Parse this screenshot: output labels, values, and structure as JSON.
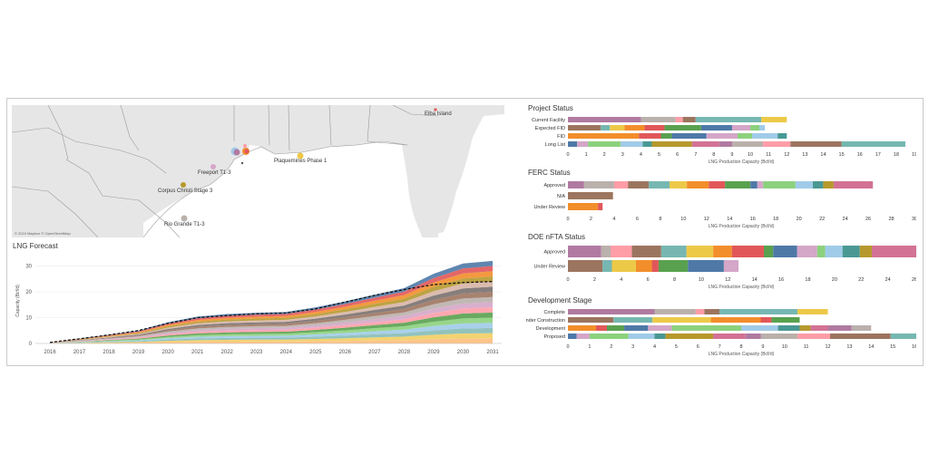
{
  "colors": [
    "#b07aa1",
    "#bab0ac",
    "#ff9da7",
    "#9c755f",
    "#76b7b2",
    "#edc948",
    "#f28e2b",
    "#e15759",
    "#59a14f",
    "#4e79a7",
    "#d4a6c8",
    "#8cd17d",
    "#a0cbe8",
    "#499894",
    "#b6992d",
    "#d37295"
  ],
  "map": {
    "attribution": "© 2024 Mapbox © OpenStreetMap",
    "labels": [
      "Elba Island",
      "Plaquemines Phase 1",
      "Freeport T1-3",
      "Corpus Christi Stage 3",
      "Rio Grande T1-3"
    ]
  },
  "chart_data": [
    {
      "type": "area",
      "title": "LNG Forecast",
      "ylabel": "Capacity (Bcf/d)",
      "x": [
        2016,
        2017,
        2018,
        2019,
        2020,
        2021,
        2022,
        2023,
        2024,
        2025,
        2026,
        2027,
        2028,
        2029,
        2030,
        2031
      ],
      "ylim": [
        0,
        33
      ],
      "yticks": [
        0,
        10,
        20,
        30
      ],
      "total": [
        0.4,
        1.9,
        3.4,
        5.0,
        8.2,
        10.4,
        11.4,
        11.9,
        12.2,
        14.0,
        16.3,
        18.9,
        21.4,
        27.0,
        31.0,
        32.0
      ],
      "forecast_line": [
        0.4,
        1.8,
        3.3,
        5.0,
        7.8,
        10.0,
        10.8,
        11.5,
        11.8,
        13.4,
        16.0,
        18.6,
        20.9,
        22.8,
        23.6,
        24.0
      ]
    },
    {
      "type": "bar",
      "title": "Project Status",
      "categories": [
        "Current Facility",
        "Expected FID",
        "FID",
        "Long List"
      ],
      "segments": [
        [
          4.0,
          1.9,
          0.4,
          0.7,
          3.6,
          1.4
        ],
        [
          1.8,
          0.5,
          0.8,
          1.1,
          1.1,
          2.0,
          1.7,
          1.0,
          0.5,
          0.3
        ],
        [
          3.9,
          1.2,
          0.6,
          1.9,
          1.7,
          0.8,
          1.4,
          0.5
        ],
        [
          0.5,
          0.6,
          1.8,
          1.2,
          0.5,
          2.2,
          1.5,
          0.7,
          1.7,
          1.5,
          2.8,
          3.5
        ]
      ],
      "xticks": [
        0,
        1,
        2,
        3,
        4,
        5,
        6,
        7,
        8,
        9,
        10,
        11,
        12,
        13,
        14,
        15,
        16,
        17,
        18,
        19
      ],
      "xlabel": "LNG Production Capacity (Bcf/d)"
    },
    {
      "type": "bar",
      "title": "FERC Status",
      "categories": [
        "Approved",
        "N/A",
        "Under Review"
      ],
      "segments": [
        [
          1.4,
          2.6,
          1.2,
          1.8,
          1.8,
          1.5,
          1.9,
          1.4,
          2.2,
          0.6,
          0.5,
          2.8,
          1.5,
          0.9,
          0.9,
          3.4
        ],
        [
          3.9
        ],
        [
          2.6,
          0.4
        ]
      ],
      "xticks": [
        0,
        2,
        4,
        6,
        8,
        10,
        12,
        14,
        16,
        18,
        20,
        22,
        24,
        26,
        28,
        30
      ],
      "xlabel": "LNG Production Capacity (Bcf/d)"
    },
    {
      "type": "bar",
      "title": "DOE nFTA Status",
      "categories": [
        "Approved",
        "Under Review"
      ],
      "segments": [
        [
          2.5,
          0.7,
          1.6,
          2.2,
          1.9,
          2.0,
          1.4,
          2.4,
          0.7,
          1.8,
          1.5,
          0.6,
          1.3,
          1.3,
          0.9,
          3.6
        ],
        [
          2.6,
          0.7,
          1.8,
          1.2,
          0.5,
          2.2,
          2.7,
          1.1
        ]
      ],
      "xticks": [
        0,
        2,
        4,
        6,
        8,
        10,
        12,
        14,
        16,
        18,
        20,
        22,
        24,
        26
      ],
      "xlabel": "LNG Production Capacity (Bcf/d)"
    },
    {
      "type": "bar",
      "title": "Development Stage",
      "categories": [
        "Complete",
        "Under Construction",
        "Development",
        "Proposed"
      ],
      "segments": [
        [
          4.0,
          1.9,
          0.4,
          0.7,
          3.6,
          1.4
        ],
        [
          2.1,
          1.8,
          2.7,
          2.3,
          0.5,
          1.3
        ],
        [
          1.3,
          0.5,
          0.8,
          1.1,
          1.1,
          3.2,
          1.7,
          1.0,
          0.5,
          0.8,
          1.1,
          0.9
        ],
        [
          0.4,
          0.6,
          1.8,
          1.2,
          0.5,
          2.2,
          1.5,
          0.7,
          1.7,
          1.5,
          2.8,
          1.8
        ]
      ],
      "xticks": [
        0,
        1,
        2,
        3,
        4,
        5,
        6,
        7,
        8,
        9,
        10,
        11,
        12,
        13,
        14,
        15,
        16
      ],
      "xlabel": "LNG Production Capacity (Bcf/d)"
    }
  ]
}
